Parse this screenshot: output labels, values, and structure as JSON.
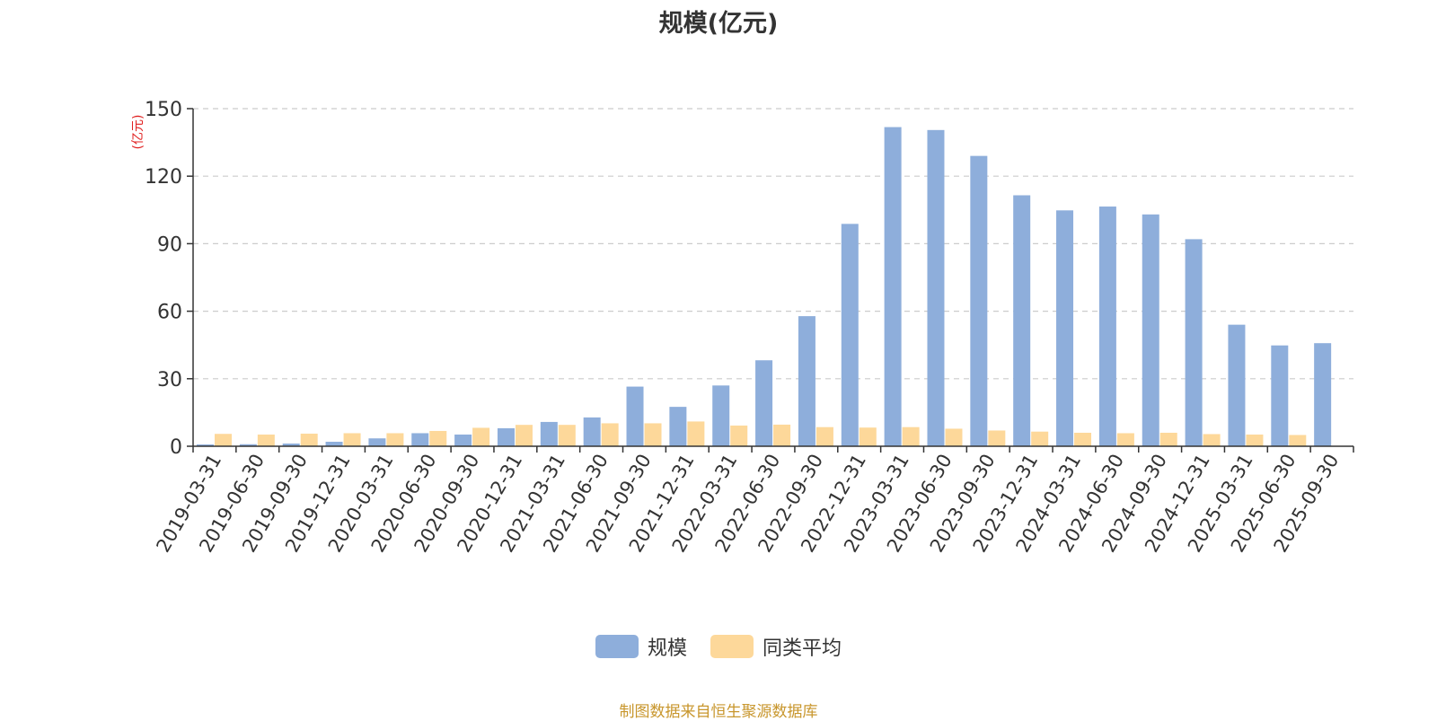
{
  "chart_data": {
    "type": "bar",
    "title": "规模(亿元)",
    "ylabel": "(亿元)",
    "ylim": [
      0,
      150
    ],
    "yticks": [
      0,
      30,
      60,
      90,
      120,
      150
    ],
    "grid": true,
    "legend_position": "bottom",
    "categories": [
      "2019-03-31",
      "2019-06-30",
      "2019-09-30",
      "2019-12-31",
      "2020-03-31",
      "2020-06-30",
      "2020-09-30",
      "2020-12-31",
      "2021-03-31",
      "2021-06-30",
      "2021-09-30",
      "2021-12-31",
      "2022-03-31",
      "2022-06-30",
      "2022-09-30",
      "2022-12-31",
      "2023-03-31",
      "2023-06-30",
      "2023-09-30",
      "2023-12-31",
      "2024-03-31",
      "2024-06-30",
      "2024-09-30",
      "2024-12-31",
      "2025-03-31",
      "2025-06-30",
      "2025-09-30"
    ],
    "series": [
      {
        "name": "规模",
        "color": "#8eaedb",
        "values": [
          0.8,
          0.9,
          1.2,
          2.0,
          3.5,
          5.8,
          5.2,
          8.0,
          10.8,
          12.8,
          26.5,
          17.5,
          27.0,
          38.2,
          57.8,
          98.8,
          141.8,
          140.5,
          129.0,
          111.5,
          104.8,
          106.5,
          103.0,
          92.0,
          54.0,
          44.8,
          45.8
        ]
      },
      {
        "name": "同类平均",
        "color": "#fdd89a",
        "values": [
          5.5,
          5.2,
          5.6,
          5.8,
          5.8,
          6.8,
          8.2,
          9.5,
          9.5,
          10.2,
          10.2,
          11.0,
          9.2,
          9.6,
          8.5,
          8.3,
          8.5,
          7.8,
          7.0,
          6.5,
          6.0,
          5.8,
          6.0,
          5.4,
          5.2,
          5.0,
          null
        ]
      }
    ]
  },
  "source_note": "制图数据来自恒生聚源数据库"
}
